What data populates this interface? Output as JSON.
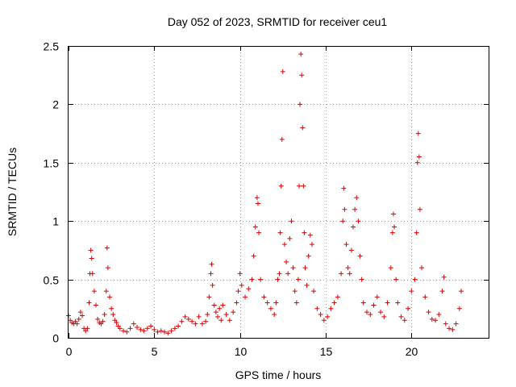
{
  "chart_data": {
    "type": "scatter",
    "title": "Day 052 of 2023, SRMTID for receiver ceu1",
    "xlabel": "GPS time / hours",
    "ylabel": "SRMTID / TECUs",
    "xlim": [
      0,
      24.5
    ],
    "ylim": [
      0,
      2.5
    ],
    "xticks": [
      0,
      5,
      10,
      15,
      20
    ],
    "xtick_labels": [
      "0",
      "5",
      "10",
      "15",
      "20"
    ],
    "yticks": [
      0,
      0.5,
      1,
      1.5,
      2,
      2.5
    ],
    "ytick_labels": [
      "0",
      "0.5",
      "1",
      "1.5",
      "2",
      "2.5"
    ],
    "grid": true,
    "marker": "+",
    "color": "#e00000",
    "series": [
      {
        "name": "SRMTID",
        "points": [
          [
            0.0,
            0.19
          ],
          [
            0.1,
            0.15
          ],
          [
            0.2,
            0.13
          ],
          [
            0.3,
            0.12
          ],
          [
            0.4,
            0.14
          ],
          [
            0.5,
            0.12
          ],
          [
            0.6,
            0.16
          ],
          [
            0.7,
            0.22
          ],
          [
            0.8,
            0.19
          ],
          [
            0.9,
            0.08
          ],
          [
            1.0,
            0.06
          ],
          [
            1.1,
            0.08
          ],
          [
            1.2,
            0.3
          ],
          [
            1.25,
            0.55
          ],
          [
            1.3,
            0.75
          ],
          [
            1.35,
            0.68
          ],
          [
            1.4,
            0.55
          ],
          [
            1.5,
            0.4
          ],
          [
            1.6,
            0.28
          ],
          [
            1.7,
            0.16
          ],
          [
            1.8,
            0.13
          ],
          [
            1.9,
            0.12
          ],
          [
            2.0,
            0.14
          ],
          [
            2.1,
            0.2
          ],
          [
            2.2,
            0.4
          ],
          [
            2.25,
            0.77
          ],
          [
            2.3,
            0.6
          ],
          [
            2.4,
            0.35
          ],
          [
            2.5,
            0.25
          ],
          [
            2.6,
            0.2
          ],
          [
            2.7,
            0.15
          ],
          [
            2.8,
            0.13
          ],
          [
            2.9,
            0.1
          ],
          [
            3.0,
            0.08
          ],
          [
            3.2,
            0.06
          ],
          [
            3.4,
            0.05
          ],
          [
            3.6,
            0.08
          ],
          [
            3.8,
            0.12
          ],
          [
            4.0,
            0.09
          ],
          [
            4.2,
            0.07
          ],
          [
            4.4,
            0.06
          ],
          [
            4.6,
            0.08
          ],
          [
            4.8,
            0.1
          ],
          [
            5.0,
            0.07
          ],
          [
            5.2,
            0.05
          ],
          [
            5.4,
            0.06
          ],
          [
            5.6,
            0.05
          ],
          [
            5.8,
            0.04
          ],
          [
            6.0,
            0.06
          ],
          [
            6.2,
            0.08
          ],
          [
            6.4,
            0.1
          ],
          [
            6.6,
            0.14
          ],
          [
            6.8,
            0.18
          ],
          [
            7.0,
            0.16
          ],
          [
            7.2,
            0.14
          ],
          [
            7.4,
            0.12
          ],
          [
            7.6,
            0.18
          ],
          [
            7.8,
            0.12
          ],
          [
            8.0,
            0.14
          ],
          [
            8.1,
            0.2
          ],
          [
            8.2,
            0.35
          ],
          [
            8.3,
            0.55
          ],
          [
            8.35,
            0.63
          ],
          [
            8.4,
            0.45
          ],
          [
            8.5,
            0.28
          ],
          [
            8.6,
            0.22
          ],
          [
            8.7,
            0.18
          ],
          [
            8.8,
            0.25
          ],
          [
            8.9,
            0.15
          ],
          [
            9.0,
            0.28
          ],
          [
            9.2,
            0.2
          ],
          [
            9.4,
            0.15
          ],
          [
            9.6,
            0.22
          ],
          [
            9.8,
            0.3
          ],
          [
            9.9,
            0.4
          ],
          [
            10.0,
            0.55
          ],
          [
            10.1,
            0.45
          ],
          [
            10.3,
            0.35
          ],
          [
            10.5,
            0.42
          ],
          [
            10.7,
            0.5
          ],
          [
            10.8,
            0.7
          ],
          [
            10.9,
            0.95
          ],
          [
            11.0,
            1.2
          ],
          [
            11.05,
            1.15
          ],
          [
            11.1,
            0.9
          ],
          [
            11.2,
            0.5
          ],
          [
            11.4,
            0.35
          ],
          [
            11.6,
            0.3
          ],
          [
            11.8,
            0.25
          ],
          [
            12.0,
            0.2
          ],
          [
            12.1,
            0.3
          ],
          [
            12.2,
            0.5
          ],
          [
            12.3,
            0.55
          ],
          [
            12.35,
            0.9
          ],
          [
            12.4,
            1.3
          ],
          [
            12.45,
            1.7
          ],
          [
            12.5,
            2.28
          ],
          [
            12.6,
            0.8
          ],
          [
            12.7,
            0.65
          ],
          [
            12.8,
            0.55
          ],
          [
            12.9,
            0.85
          ],
          [
            13.0,
            1.0
          ],
          [
            13.1,
            0.6
          ],
          [
            13.2,
            0.4
          ],
          [
            13.3,
            0.3
          ],
          [
            13.4,
            0.5
          ],
          [
            13.45,
            1.3
          ],
          [
            13.5,
            2.0
          ],
          [
            13.55,
            2.43
          ],
          [
            13.6,
            2.25
          ],
          [
            13.65,
            1.8
          ],
          [
            13.7,
            1.3
          ],
          [
            13.75,
            0.9
          ],
          [
            13.8,
            0.6
          ],
          [
            13.9,
            0.45
          ],
          [
            14.0,
            0.7
          ],
          [
            14.1,
            0.88
          ],
          [
            14.2,
            0.8
          ],
          [
            14.3,
            0.4
          ],
          [
            14.5,
            0.25
          ],
          [
            14.7,
            0.2
          ],
          [
            14.9,
            0.15
          ],
          [
            15.1,
            0.18
          ],
          [
            15.3,
            0.25
          ],
          [
            15.5,
            0.3
          ],
          [
            15.7,
            0.35
          ],
          [
            15.9,
            0.55
          ],
          [
            16.0,
            1.0
          ],
          [
            16.05,
            1.28
          ],
          [
            16.1,
            1.1
          ],
          [
            16.2,
            0.8
          ],
          [
            16.3,
            0.6
          ],
          [
            16.4,
            0.55
          ],
          [
            16.5,
            0.75
          ],
          [
            16.6,
            0.95
          ],
          [
            16.7,
            1.1
          ],
          [
            16.8,
            1.2
          ],
          [
            16.9,
            1.0
          ],
          [
            17.0,
            0.7
          ],
          [
            17.1,
            0.5
          ],
          [
            17.2,
            0.3
          ],
          [
            17.4,
            0.22
          ],
          [
            17.6,
            0.2
          ],
          [
            17.8,
            0.28
          ],
          [
            18.0,
            0.35
          ],
          [
            18.2,
            0.22
          ],
          [
            18.4,
            0.18
          ],
          [
            18.6,
            0.3
          ],
          [
            18.8,
            0.6
          ],
          [
            18.9,
            0.9
          ],
          [
            18.95,
            1.06
          ],
          [
            19.0,
            0.95
          ],
          [
            19.1,
            0.5
          ],
          [
            19.2,
            0.3
          ],
          [
            19.4,
            0.18
          ],
          [
            19.6,
            0.15
          ],
          [
            19.8,
            0.25
          ],
          [
            20.0,
            0.4
          ],
          [
            20.2,
            0.5
          ],
          [
            20.3,
            0.9
          ],
          [
            20.35,
            1.5
          ],
          [
            20.4,
            1.75
          ],
          [
            20.45,
            1.55
          ],
          [
            20.5,
            1.1
          ],
          [
            20.6,
            0.6
          ],
          [
            20.8,
            0.35
          ],
          [
            21.0,
            0.22
          ],
          [
            21.2,
            0.16
          ],
          [
            21.4,
            0.15
          ],
          [
            21.6,
            0.2
          ],
          [
            21.8,
            0.4
          ],
          [
            21.9,
            0.52
          ],
          [
            22.0,
            0.12
          ],
          [
            22.2,
            0.08
          ],
          [
            22.4,
            0.07
          ],
          [
            22.6,
            0.12
          ],
          [
            22.8,
            0.25
          ],
          [
            22.9,
            0.4
          ]
        ]
      }
    ]
  }
}
